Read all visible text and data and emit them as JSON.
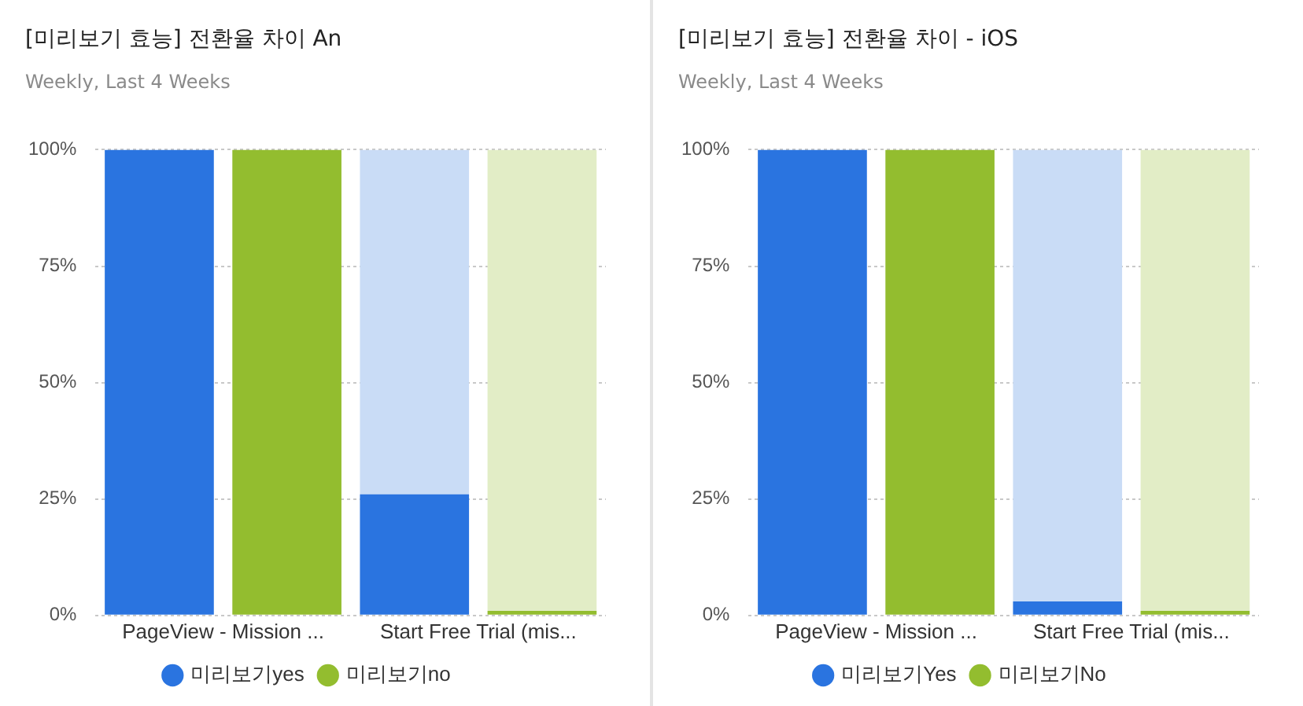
{
  "chart_data": [
    {
      "type": "bar",
      "title": "[미리보기 효능] 전환율 차이 An",
      "subtitle": "Weekly, Last 4 Weeks",
      "categories": [
        "PageView - Mission ...",
        null,
        "Start Free Trial (mis...",
        null
      ],
      "stacked": true,
      "series": [
        {
          "name": "미리보기yes",
          "color": "#2a74e0",
          "values": [
            100,
            null,
            26,
            null
          ]
        },
        {
          "name": "미리보기no",
          "color": "#93bd2f",
          "values": [
            null,
            100,
            null,
            1
          ]
        },
        {
          "color": "#c9dcf6",
          "values": [
            null,
            null,
            74,
            null
          ]
        },
        {
          "color": "#e2edc6",
          "values": [
            null,
            null,
            null,
            99
          ]
        }
      ],
      "ylim": [
        0,
        100
      ],
      "yticks": [
        {
          "value": 0,
          "label": "0%"
        },
        {
          "value": 25,
          "label": "25%"
        },
        {
          "value": 50,
          "label": "50%"
        },
        {
          "value": 75,
          "label": "75%"
        },
        {
          "value": 100,
          "label": "100%"
        }
      ],
      "grid": "y",
      "legend": "bottom"
    },
    {
      "type": "bar",
      "title": "[미리보기 효능] 전환율 차이 - iOS",
      "subtitle": "Weekly, Last 4 Weeks",
      "categories": [
        "PageView - Mission ...",
        null,
        "Start Free Trial (mis...",
        null
      ],
      "stacked": true,
      "series": [
        {
          "name": "미리보기Yes",
          "color": "#2a74e0",
          "values": [
            100,
            null,
            3,
            null
          ]
        },
        {
          "name": "미리보기No",
          "color": "#93bd2f",
          "values": [
            null,
            100,
            null,
            1
          ]
        },
        {
          "color": "#c9dcf6",
          "values": [
            null,
            null,
            97,
            null
          ]
        },
        {
          "color": "#e2edc6",
          "values": [
            null,
            null,
            null,
            99
          ]
        }
      ],
      "ylim": [
        0,
        100
      ],
      "yticks": [
        {
          "value": 0,
          "label": "0%"
        },
        {
          "value": 25,
          "label": "25%"
        },
        {
          "value": 50,
          "label": "50%"
        },
        {
          "value": 75,
          "label": "75%"
        },
        {
          "value": 100,
          "label": "100%"
        }
      ],
      "grid": "y",
      "legend": "bottom"
    }
  ]
}
